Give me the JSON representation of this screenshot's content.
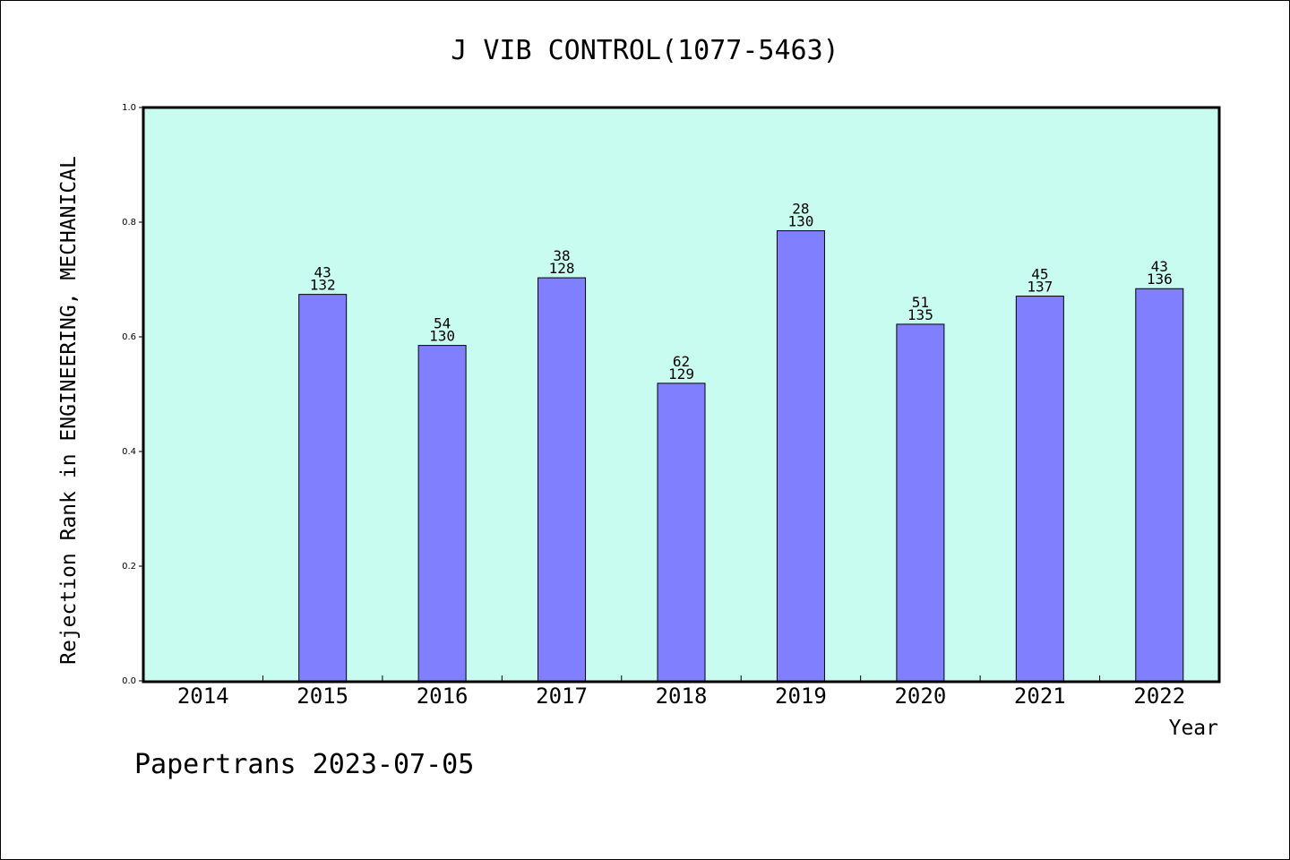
{
  "chart_data": {
    "type": "bar",
    "title": "J VIB CONTROL(1077-5463)",
    "xlabel": "Year",
    "ylabel": "Rejection Rank in ENGINEERING, MECHANICAL",
    "categories": [
      "2014",
      "2015",
      "2016",
      "2017",
      "2018",
      "2019",
      "2020",
      "2021",
      "2022"
    ],
    "values": [
      null,
      0.674,
      0.585,
      0.703,
      0.519,
      0.785,
      0.622,
      0.671,
      0.684
    ],
    "labels_top": [
      "",
      "43",
      "54",
      "38",
      "62",
      "28",
      "51",
      "45",
      "43"
    ],
    "labels_bottom": [
      "",
      "132",
      "130",
      "128",
      "129",
      "130",
      "135",
      "137",
      "136"
    ],
    "ylim": [
      0,
      1.0
    ],
    "yticks": [
      "0.0",
      "0.2",
      "0.4",
      "0.6",
      "0.8",
      "1.0"
    ],
    "grid": false,
    "legend": "none",
    "colors": {
      "plot_bg": "#c8fcf0",
      "bar": "#8080ff",
      "bar_edge": "#000000"
    }
  },
  "footer": "Papertrans 2023-07-05"
}
